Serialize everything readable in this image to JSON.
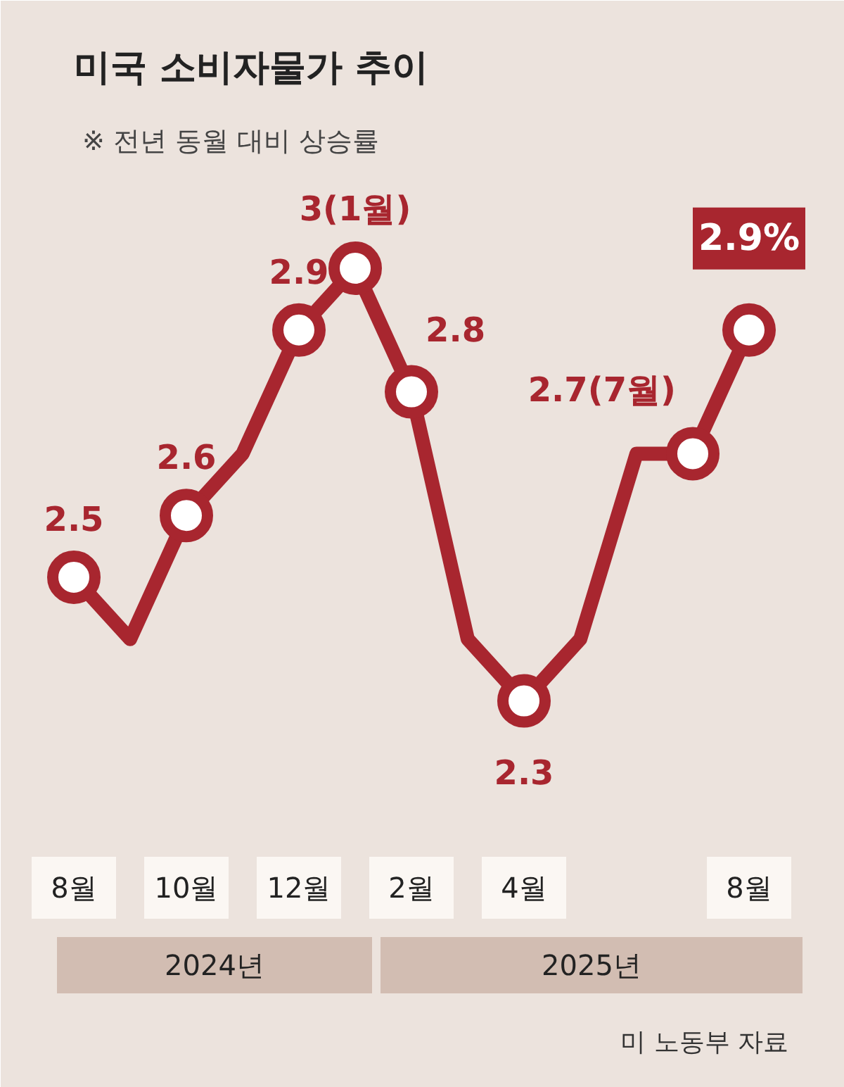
{
  "chart_data": {
    "type": "line",
    "title": "미국 소비자물가 추이",
    "subtitle": "※ 전년 동월 대비 상승률",
    "categories": [
      "8월",
      null,
      "10월",
      null,
      "12월",
      null,
      "2월",
      null,
      "4월",
      null,
      null,
      null,
      "8월"
    ],
    "series": [
      {
        "color": "#a8262f",
        "values": [
          2.5,
          2.4,
          2.6,
          2.7,
          2.9,
          3.0,
          2.8,
          2.4,
          2.3,
          2.4,
          2.7,
          2.7,
          2.9
        ],
        "value_labels": [
          "2.5",
          null,
          "2.6",
          null,
          "2.9",
          "3(1월)",
          "2.8",
          null,
          "2.3",
          null,
          null,
          "2.7(7월)",
          "2.9%"
        ]
      }
    ],
    "marker": "circle",
    "line_style": "solid",
    "annotations": [
      "2024년",
      "2025년",
      "미 노동부 자료"
    ]
  }
}
